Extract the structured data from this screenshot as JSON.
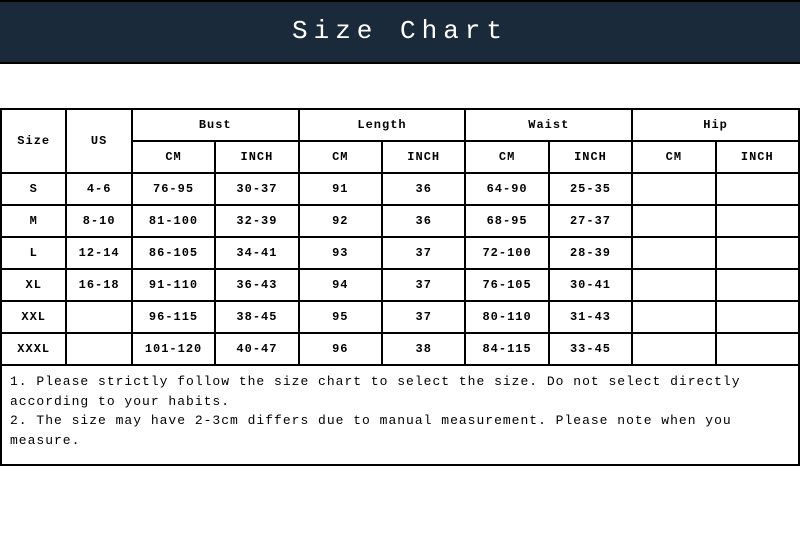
{
  "title": "Size Chart",
  "colors": {
    "header_bg": "#1b2a3a",
    "header_text": "#ffffff",
    "border": "#000000",
    "page_bg": "#ffffff"
  },
  "group_headers": [
    "Size",
    "US",
    "Bust",
    "Length",
    "Waist",
    "Hip"
  ],
  "unit_headers": [
    "",
    "",
    "CM",
    "INCH",
    "CM",
    "INCH",
    "CM",
    "INCH",
    "CM",
    "INCH"
  ],
  "rows": [
    {
      "size": "S",
      "us": "4-6",
      "bust_cm": "76-95",
      "bust_in": "30-37",
      "len_cm": "91",
      "len_in": "36",
      "waist_cm": "64-90",
      "waist_in": "25-35",
      "hip_cm": "",
      "hip_in": ""
    },
    {
      "size": "M",
      "us": "8-10",
      "bust_cm": "81-100",
      "bust_in": "32-39",
      "len_cm": "92",
      "len_in": "36",
      "waist_cm": "68-95",
      "waist_in": "27-37",
      "hip_cm": "",
      "hip_in": ""
    },
    {
      "size": "L",
      "us": "12-14",
      "bust_cm": "86-105",
      "bust_in": "34-41",
      "len_cm": "93",
      "len_in": "37",
      "waist_cm": "72-100",
      "waist_in": "28-39",
      "hip_cm": "",
      "hip_in": ""
    },
    {
      "size": "XL",
      "us": "16-18",
      "bust_cm": "91-110",
      "bust_in": "36-43",
      "len_cm": "94",
      "len_in": "37",
      "waist_cm": "76-105",
      "waist_in": "30-41",
      "hip_cm": "",
      "hip_in": ""
    },
    {
      "size": "XXL",
      "us": "",
      "bust_cm": "96-115",
      "bust_in": "38-45",
      "len_cm": "95",
      "len_in": "37",
      "waist_cm": "80-110",
      "waist_in": "31-43",
      "hip_cm": "",
      "hip_in": ""
    },
    {
      "size": "XXXL",
      "us": "",
      "bust_cm": "101-120",
      "bust_in": "40-47",
      "len_cm": "96",
      "len_in": "38",
      "waist_cm": "84-115",
      "waist_in": "33-45",
      "hip_cm": "",
      "hip_in": ""
    }
  ],
  "notes": {
    "line1": "1. Please strictly follow the size chart to select the size. Do not select directly according to your habits.",
    "line2": "2. The size may have 2-3cm differs due to manual measurement. Please note when you measure."
  }
}
